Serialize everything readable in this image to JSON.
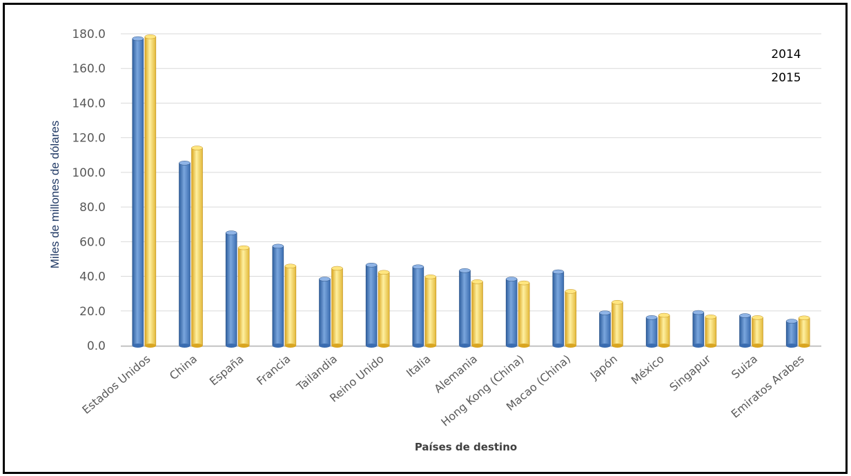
{
  "chart_data": {
    "type": "bar",
    "title": "",
    "xlabel": "Países de destino",
    "ylabel": "Miles de millones de dólares",
    "ylim": [
      0,
      180
    ],
    "yticks": [
      "0.0",
      "20.0",
      "40.0",
      "60.0",
      "80.0",
      "100.0",
      "120.0",
      "140.0",
      "160.0",
      "180.0"
    ],
    "grid": true,
    "legend_position": "top-right",
    "categories": [
      "Estados Unidos",
      "China",
      "España",
      "Francia",
      "Tailandia",
      "Reino Unido",
      "Italia",
      "Alemania",
      "Hong  Kong (China)",
      "Macao (China)",
      "Japón",
      "México",
      "Singapur",
      "Suiza",
      "Emiratos Arabes"
    ],
    "series": [
      {
        "name": "2014",
        "color": "#4f81bd",
        "values": [
          177.2,
          105.4,
          65.1,
          57.4,
          38.4,
          46.5,
          45.5,
          43.3,
          38.4,
          42.6,
          18.9,
          16.2,
          19.1,
          17.3,
          14.1
        ]
      },
      {
        "name": "2015",
        "color": "#ffd54f",
        "values": [
          178.3,
          114.1,
          56.5,
          45.9,
          44.6,
          42.3,
          39.7,
          36.9,
          36.2,
          31.3,
          25.0,
          17.5,
          16.6,
          16.2,
          16.0
        ]
      }
    ]
  }
}
